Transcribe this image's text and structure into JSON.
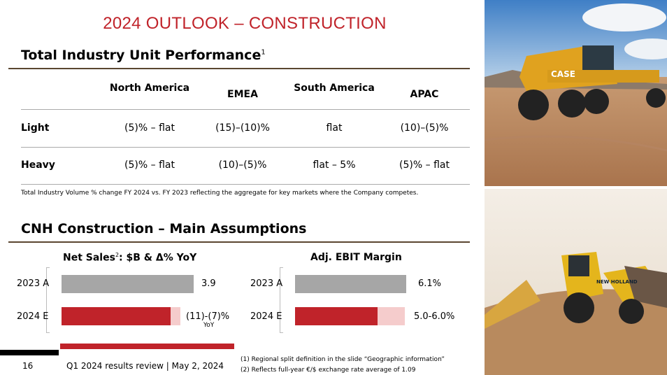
{
  "title": "2024 OUTLOOK – CONSTRUCTION",
  "section1": {
    "heading": "Total Industry Unit Performance",
    "sup": "1",
    "columns": [
      "North America",
      "EMEA",
      "South America",
      "APAC"
    ],
    "rows": [
      {
        "label": "Light",
        "values": [
          "(5)% – flat",
          "(15)–(10)%",
          "flat",
          "(10)–(5)%"
        ]
      },
      {
        "label": "Heavy",
        "values": [
          "(5)% – flat",
          "(10)–(5)%",
          "flat – 5%",
          "(5)% – flat"
        ]
      }
    ],
    "note": "Total Industry Volume % change FY 2024 vs. FY 2023 reflecting the aggregate for key markets where the Company competes."
  },
  "section2": {
    "heading": "CNH Construction – Main Assumptions"
  },
  "chart_data": [
    {
      "type": "bar",
      "title": "Net Sales",
      "title_sup": "2",
      "title_rest": ": $B & Δ% YoY",
      "categories": [
        "2023 A",
        "2024 E"
      ],
      "labels": [
        "3.9",
        "(11)-(7)%"
      ],
      "sublabel": "YoY",
      "values": [
        3.9,
        [
          3.47,
          3.63
        ]
      ]
    },
    {
      "type": "bar",
      "title": "Adj. EBIT Margin",
      "categories": [
        "2023 A",
        "2024 E"
      ],
      "labels": [
        "6.1%",
        "5.0-6.0%"
      ],
      "values": [
        6.1,
        [
          5.0,
          6.0
        ]
      ]
    }
  ],
  "colors": {
    "accent": "#c0232a",
    "actual": "#a6a6a6",
    "range": "#f5cccc"
  },
  "footer": {
    "page": "16",
    "event": "Q1 2024 results review | May 2, 2024",
    "footnotes": [
      "(1) Regional split definition in the slide “Geographic information”",
      "(2) Reflects full-year €/$ exchange rate average of 1.09"
    ]
  },
  "photos": {
    "top_brand": "CASE",
    "bottom_brand": "NEW HOLLAND"
  }
}
